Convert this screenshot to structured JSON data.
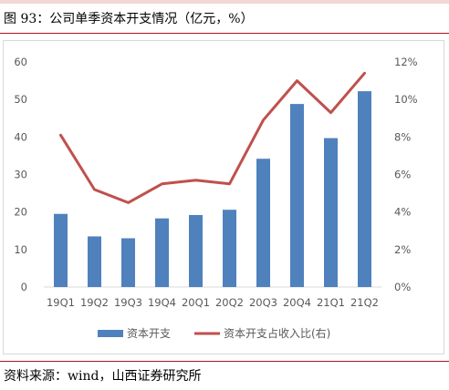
{
  "figure": {
    "title": "图 93：公司单季资本开支情况（亿元，%）",
    "source": "资料来源：wind，山西证券研究所"
  },
  "colors": {
    "bar": "#4f81bd",
    "line": "#c0504d",
    "accent_rule": "#a6161d",
    "axis_text": "#595959"
  },
  "chart_data": {
    "type": "bar",
    "title": "",
    "categories": [
      "19Q1",
      "19Q2",
      "19Q3",
      "19Q4",
      "20Q1",
      "20Q2",
      "20Q3",
      "20Q4",
      "21Q1",
      "21Q2"
    ],
    "series": [
      {
        "name": "资本开支",
        "type": "bar",
        "axis": "left",
        "values": [
          19.5,
          13.5,
          13.0,
          18.3,
          19.2,
          20.6,
          34.2,
          48.8,
          39.7,
          52.2
        ]
      },
      {
        "name": "资本开支占收入比(右)",
        "type": "line",
        "axis": "right",
        "values": [
          8.1,
          5.2,
          4.5,
          5.5,
          5.7,
          5.5,
          8.9,
          11.0,
          9.3,
          11.4
        ]
      }
    ],
    "y_left": {
      "min": 0,
      "max": 60,
      "ticks": [
        "0",
        "10",
        "20",
        "30",
        "40",
        "50",
        "60"
      ]
    },
    "y_right": {
      "min": 0,
      "max": 12,
      "ticks": [
        "0%",
        "2%",
        "4%",
        "6%",
        "8%",
        "10%",
        "12%"
      ]
    },
    "grid": false,
    "legend_position": "bottom"
  }
}
